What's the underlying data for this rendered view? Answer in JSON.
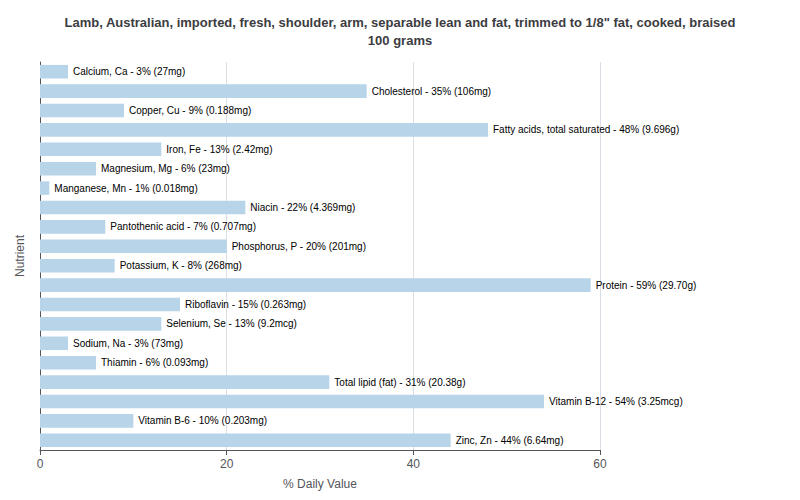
{
  "chart_data": {
    "type": "bar",
    "orientation": "horizontal",
    "title": "Lamb, Australian, imported, fresh, shoulder, arm, separable lean and fat, trimmed to 1/8\" fat, cooked, braised\n100 grams",
    "xlabel": "% Daily Value",
    "ylabel": "Nutrient",
    "categories": [
      "Calcium, Ca - 3% (27mg)",
      "Cholesterol - 35% (106mg)",
      "Copper, Cu - 9% (0.188mg)",
      "Fatty acids, total saturated - 48% (9.696g)",
      "Iron, Fe - 13% (2.42mg)",
      "Magnesium, Mg - 6% (23mg)",
      "Manganese, Mn - 1% (0.018mg)",
      "Niacin - 22% (4.369mg)",
      "Pantothenic acid - 7% (0.707mg)",
      "Phosphorus, P - 20% (201mg)",
      "Potassium, K - 8% (268mg)",
      "Protein - 59% (29.70g)",
      "Riboflavin - 15% (0.263mg)",
      "Selenium, Se - 13% (9.2mcg)",
      "Sodium, Na - 3% (73mg)",
      "Thiamin - 6% (0.093mg)",
      "Total lipid (fat) - 31% (20.38g)",
      "Vitamin B-12 - 54% (3.25mcg)",
      "Vitamin B-6 - 10% (0.203mg)",
      "Zinc, Zn - 44% (6.64mg)"
    ],
    "values": [
      3,
      35,
      9,
      48,
      13,
      6,
      1,
      22,
      7,
      20,
      8,
      59,
      15,
      13,
      3,
      6,
      31,
      54,
      10,
      44
    ],
    "color": "#b8d4e8",
    "xlim": [
      0,
      60
    ],
    "xticks": [
      0,
      20,
      40,
      60
    ],
    "grid": true,
    "tick_labels": "x"
  }
}
